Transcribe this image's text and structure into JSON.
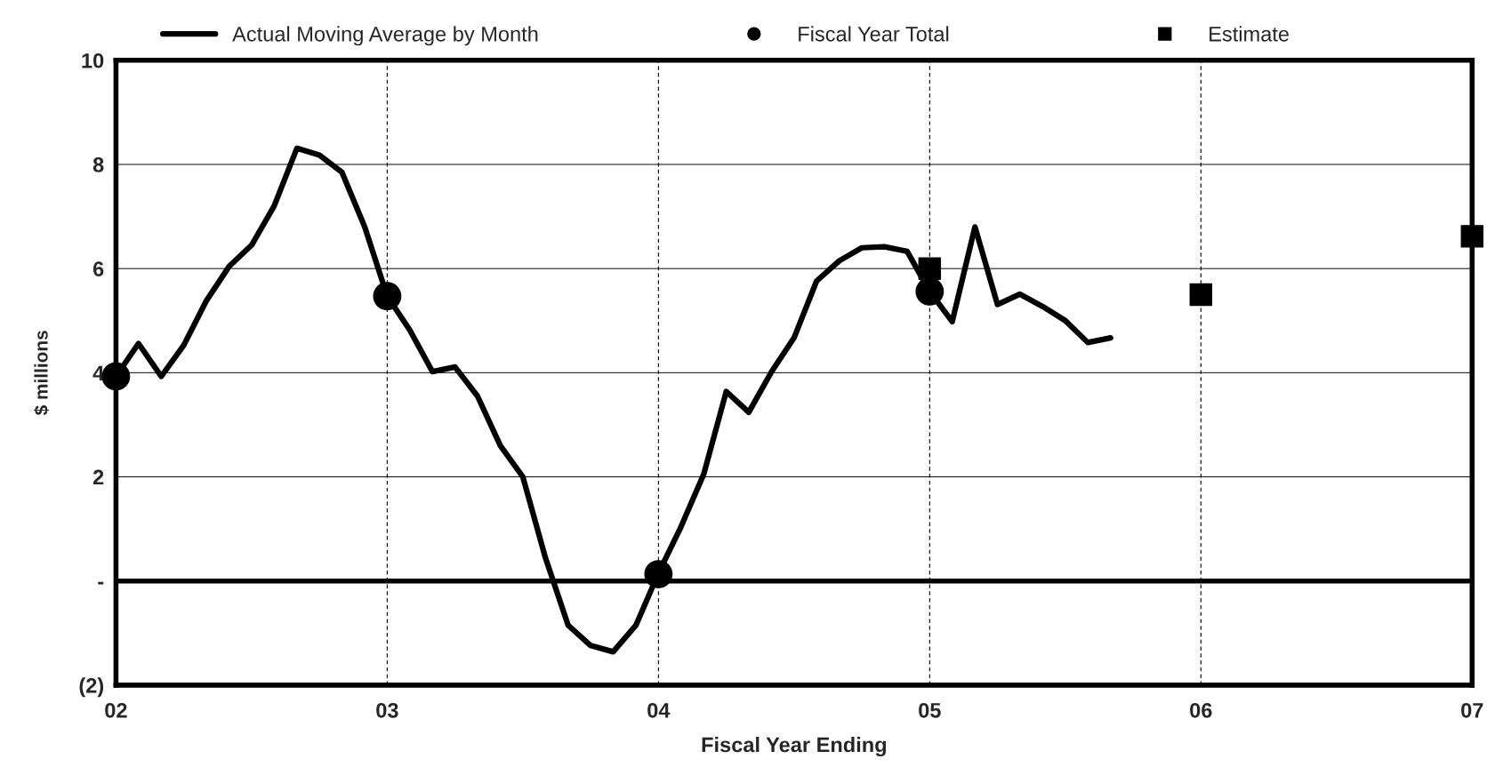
{
  "chart_data": {
    "type": "line",
    "xlabel": "Fiscal Year Ending",
    "ylabel": "$ millions",
    "xlim": [
      2,
      7
    ],
    "xticks": [
      {
        "value": 2,
        "label": "02"
      },
      {
        "value": 3,
        "label": "03"
      },
      {
        "value": 4,
        "label": "04"
      },
      {
        "value": 5,
        "label": "05"
      },
      {
        "value": 6,
        "label": "06"
      },
      {
        "value": 7,
        "label": "07"
      }
    ],
    "ylim": [
      -2,
      10
    ],
    "yticks": [
      {
        "value": -2,
        "label": "(2)"
      },
      {
        "value": 0,
        "label": "-"
      },
      2,
      4,
      6,
      8,
      10
    ],
    "grid": true,
    "legend": "top",
    "ref_lines": [
      {
        "axis": "y",
        "value": 0,
        "color": "#000000"
      }
    ],
    "series": [
      {
        "name": "Actual Moving Average by Month",
        "color": "#000000",
        "marker": "none",
        "line_style": "solid",
        "x": [
          2.0,
          2.083,
          2.167,
          2.25,
          2.333,
          2.417,
          2.5,
          2.583,
          2.667,
          2.75,
          2.833,
          2.917,
          3.0,
          3.083,
          3.167,
          3.25,
          3.333,
          3.417,
          3.5,
          3.583,
          3.667,
          3.75,
          3.833,
          3.917,
          4.0,
          4.083,
          4.167,
          4.25,
          4.333,
          4.417,
          4.5,
          4.583,
          4.667,
          4.75,
          4.833,
          4.917,
          5.0,
          5.083,
          5.167,
          5.25,
          5.333,
          5.417,
          5.5,
          5.583,
          5.667
        ],
        "values": [
          3.93,
          4.56,
          3.93,
          4.53,
          5.38,
          6.04,
          6.45,
          7.2,
          8.31,
          8.18,
          7.85,
          6.8,
          5.47,
          4.82,
          4.02,
          4.11,
          3.55,
          2.6,
          2.0,
          0.45,
          -0.85,
          -1.24,
          -1.36,
          -0.85,
          0.15,
          1.04,
          2.05,
          3.64,
          3.24,
          4.02,
          4.67,
          5.76,
          6.15,
          6.4,
          6.42,
          6.33,
          5.56,
          4.98,
          6.8,
          5.31,
          5.51,
          5.27,
          5.0,
          4.58,
          4.67
        ]
      },
      {
        "name": "Fiscal Year Total",
        "type": "scatter",
        "color": "#000000",
        "marker": "circle",
        "x": [
          2,
          3,
          4,
          5
        ],
        "values": [
          3.93,
          5.47,
          0.13,
          5.56
        ]
      },
      {
        "name": "Estimate",
        "type": "scatter",
        "color": "#000000",
        "marker": "square",
        "x": [
          5,
          6,
          7
        ],
        "values": [
          6.0,
          5.5,
          6.62
        ]
      }
    ]
  }
}
